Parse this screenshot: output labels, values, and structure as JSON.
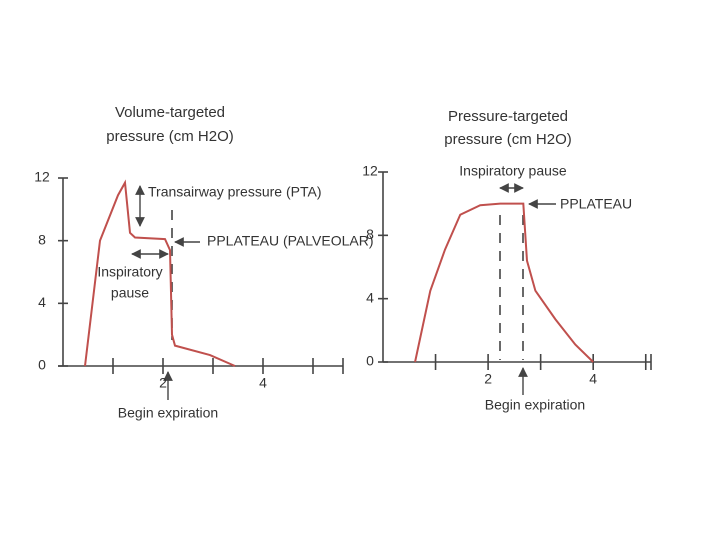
{
  "chart_data": [
    {
      "type": "line",
      "title": [
        "Volume-targeted",
        "pressure (cm H2O)"
      ],
      "x": [
        0.44,
        0.74,
        1.1,
        1.24,
        1.34,
        1.44,
        2.04,
        2.14,
        2.18,
        2.24,
        2.94,
        3.44
      ],
      "values": [
        0,
        8.0,
        10.9,
        11.7,
        8.5,
        8.2,
        8.1,
        7.4,
        2.0,
        1.3,
        0.7,
        0
      ],
      "color": "#c0504d",
      "xlim": [
        -0.1,
        5.6
      ],
      "ylim": [
        0,
        12
      ],
      "xticks": [
        2,
        4
      ],
      "x_minor_ticks": [
        1,
        3,
        5
      ],
      "yticks": [
        0,
        4,
        8,
        12
      ],
      "annotations": [
        "Transairway pressure (PTA)",
        "PPLATEAU (PALVEOLAR)",
        "Inspiratory",
        "pause",
        "Begin expiration"
      ]
    },
    {
      "type": "line",
      "title": [
        "Pressure-targeted",
        "pressure (cm H2O)"
      ],
      "x": [
        0.61,
        0.9,
        1.18,
        1.47,
        1.85,
        2.23,
        2.67,
        2.74,
        2.9,
        3.28,
        3.66,
        4.0
      ],
      "values": [
        0,
        4.5,
        7.1,
        9.3,
        9.9,
        10,
        10,
        6.4,
        4.5,
        2.7,
        1.1,
        0
      ],
      "color": "#c0504d",
      "xlim": [
        0,
        5.1
      ],
      "ylim": [
        0,
        12
      ],
      "xticks": [
        2,
        4
      ],
      "x_minor_ticks": [
        1,
        3,
        5
      ],
      "yticks": [
        0,
        4,
        8,
        12
      ],
      "annotations": [
        "Inspiratory pause",
        "PPLATEAU",
        "Begin expiration"
      ]
    }
  ]
}
